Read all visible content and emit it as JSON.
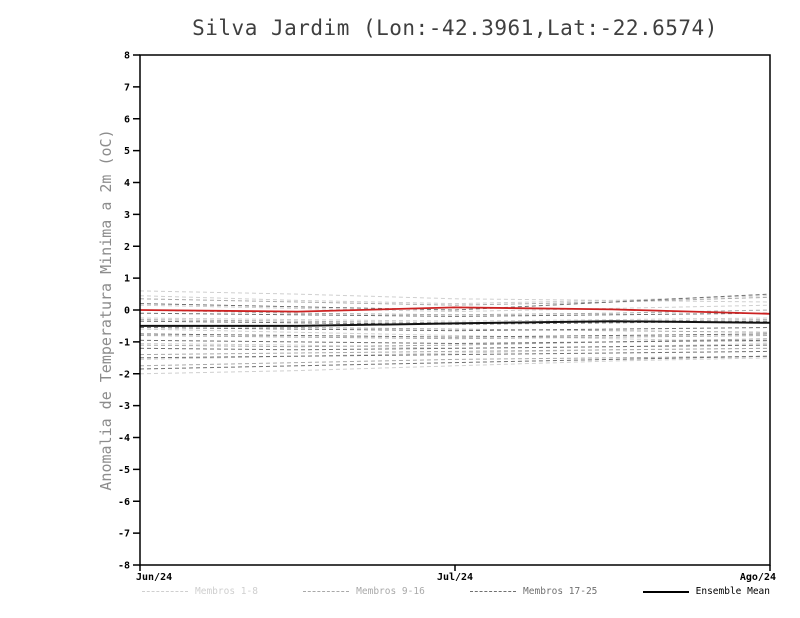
{
  "chart_data": {
    "type": "line",
    "title": "Silva Jardim (Lon:-42.3961,Lat:-22.6574)",
    "ylabel": "Anomalia de Temperatura Minima a 2m (oC)",
    "xlabel": "",
    "ylim": [
      -8,
      8
    ],
    "yticks": [
      8,
      7,
      6,
      5,
      4,
      3,
      2,
      1,
      0,
      -1,
      -2,
      -3,
      -4,
      -5,
      -6,
      -7,
      -8
    ],
    "x_ticklabels": [
      "Jun/24",
      "Jul/24",
      "Ago/24"
    ],
    "grid": false,
    "legend_position": "bottom",
    "x": [
      0,
      0.25,
      0.5,
      0.75,
      1
    ],
    "groups": [
      {
        "name": "Membros 1-8",
        "color": "#cfcfcf",
        "members": [
          [
            0.6,
            0.5,
            0.35,
            0.3,
            0.25
          ],
          [
            0.45,
            0.3,
            0.2,
            0.3,
            0.45
          ],
          [
            0.15,
            0.05,
            -0.05,
            0.05,
            0.15
          ],
          [
            -0.25,
            -0.3,
            -0.35,
            -0.3,
            -0.25
          ],
          [
            -0.6,
            -0.7,
            -0.8,
            -0.9,
            -1.0
          ],
          [
            -1.05,
            -1.1,
            -1.2,
            -1.15,
            -1.05
          ],
          [
            -1.55,
            -1.45,
            -1.35,
            -1.25,
            -1.2
          ],
          [
            -2.0,
            -1.9,
            -1.75,
            -1.6,
            -1.5
          ]
        ]
      },
      {
        "name": "Membros 9-16",
        "color": "#a9a9a9",
        "members": [
          [
            0.35,
            0.25,
            0.15,
            0.25,
            0.4
          ],
          [
            0.0,
            -0.1,
            -0.15,
            -0.1,
            0.0
          ],
          [
            -0.3,
            -0.35,
            -0.4,
            -0.35,
            -0.3
          ],
          [
            -0.5,
            -0.55,
            -0.6,
            -0.65,
            -0.7
          ],
          [
            -0.8,
            -0.85,
            -0.9,
            -0.85,
            -0.8
          ],
          [
            -1.1,
            -1.15,
            -1.1,
            -1.0,
            -0.9
          ],
          [
            -1.4,
            -1.35,
            -1.3,
            -1.25,
            -1.2
          ],
          [
            -1.75,
            -1.65,
            -1.55,
            -1.5,
            -1.45
          ]
        ]
      },
      {
        "name": "Membros 17-25",
        "color": "#707070",
        "members": [
          [
            0.2,
            0.1,
            0.0,
            0.25,
            0.5
          ],
          [
            -0.1,
            -0.15,
            -0.2,
            -0.15,
            -0.1
          ],
          [
            -0.35,
            -0.4,
            -0.45,
            -0.4,
            -0.35
          ],
          [
            -0.55,
            -0.6,
            -0.65,
            -0.6,
            -0.55
          ],
          [
            -0.75,
            -0.8,
            -0.85,
            -0.8,
            -0.75
          ],
          [
            -0.95,
            -1.0,
            -1.05,
            -1.0,
            -0.95
          ],
          [
            -1.2,
            -1.25,
            -1.2,
            -1.15,
            -1.1
          ],
          [
            -1.5,
            -1.45,
            -1.4,
            -1.35,
            -1.3
          ],
          [
            -1.85,
            -1.75,
            -1.65,
            -1.55,
            -1.45
          ]
        ]
      }
    ],
    "mean": {
      "name": "Ensemble Mean",
      "color": "#111111",
      "values": [
        -0.5,
        -0.5,
        -0.42,
        -0.35,
        -0.4
      ]
    },
    "reference": {
      "color": "#cc2222",
      "values": [
        0.0,
        -0.05,
        0.08,
        0.02,
        -0.12
      ]
    },
    "legend": [
      {
        "label": "Membros 1-8",
        "color": "#cfcfcf",
        "style": "dashed"
      },
      {
        "label": "Membros 9-16",
        "color": "#a9a9a9",
        "style": "dashed"
      },
      {
        "label": "Membros 17-25",
        "color": "#707070",
        "style": "dashed"
      },
      {
        "label": "Ensemble Mean",
        "color": "#000000",
        "style": "solid"
      }
    ]
  }
}
